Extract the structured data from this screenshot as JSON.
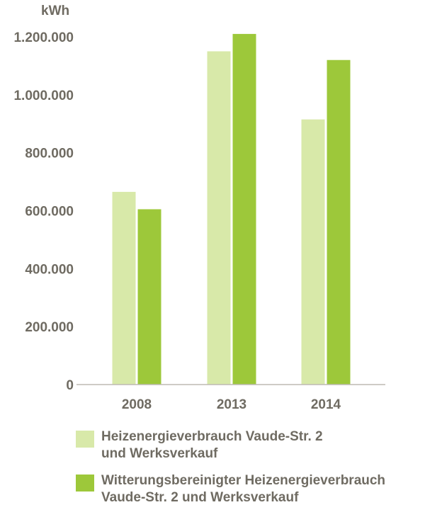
{
  "chart_data": {
    "type": "bar",
    "unit_label": "kWh",
    "categories": [
      "2008",
      "2013",
      "2014"
    ],
    "series": [
      {
        "name": "Heizenergieverbrauch Vaude-Str. 2\nund Werksverkauf",
        "color": "#d8e9a9",
        "values": [
          665000,
          1150000,
          915000
        ]
      },
      {
        "name": "Witterungsbereinigter Heizenergieverbrauch\nVaude-Str. 2 und Werksverkauf",
        "color": "#9dc83a",
        "values": [
          605000,
          1210000,
          1120000
        ]
      }
    ],
    "yticks": [
      "0",
      "200.000",
      "400.000",
      "600.000",
      "800.000",
      "1.000.000",
      "1.200.000"
    ],
    "ylim": [
      0,
      1200000
    ],
    "grid": false,
    "legend_position": "bottom"
  }
}
